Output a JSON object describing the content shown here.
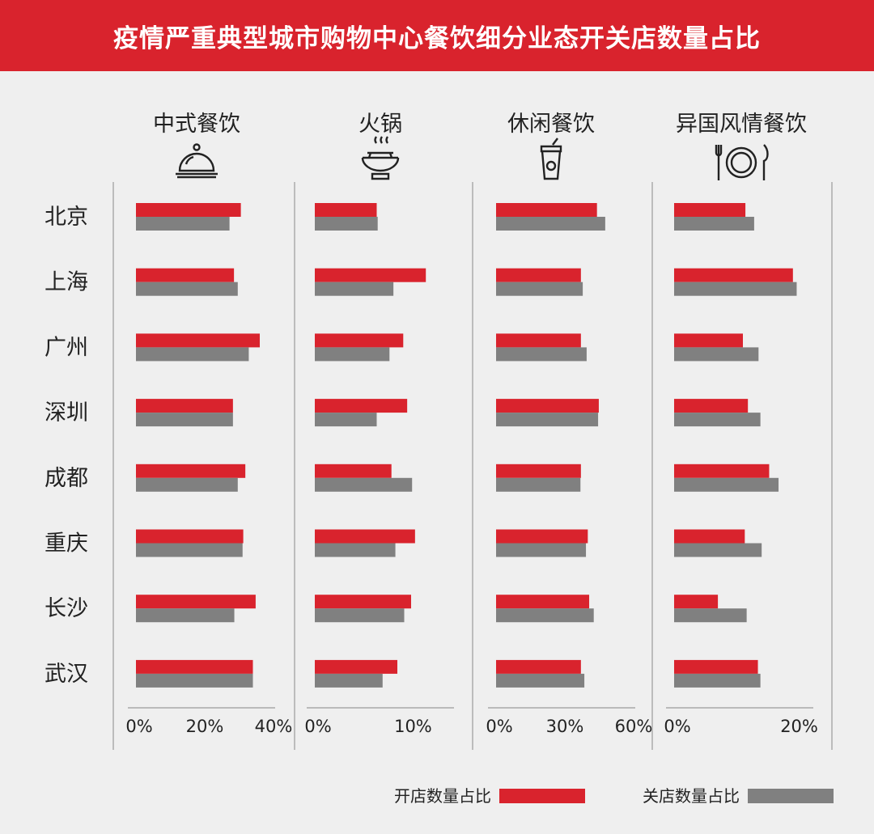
{
  "title": "疫情严重典型城市购物中心餐饮细分业态开关店数量占比",
  "colors": {
    "open": "#d9232d",
    "close": "#808080",
    "banner": "#d9232d",
    "axis": "#888888",
    "text": "#222222"
  },
  "legend": {
    "open_label": "开店数量占比",
    "close_label": "关店数量占比"
  },
  "chart_data": {
    "type": "bar",
    "orientation": "horizontal",
    "title": "疫情严重典型城市购物中心餐饮细分业态开关店数量占比",
    "categories": [
      "北京",
      "上海",
      "广州",
      "深圳",
      "成都",
      "重庆",
      "长沙",
      "武汉"
    ],
    "legend_position": "bottom-right",
    "grid": false,
    "panels": [
      {
        "name": "中式餐饮",
        "icon": "cloche-icon",
        "xlim": [
          0,
          40
        ],
        "ticks": [
          0,
          20,
          40
        ],
        "tick_labels": [
          "0%",
          "20%",
          "40%"
        ],
        "series": [
          {
            "name": "开店数量占比",
            "values": [
              30.5,
              28.5,
              36,
              28.2,
              31.8,
              31.2,
              34.8,
              34
            ]
          },
          {
            "name": "关店数量占比",
            "values": [
              27.2,
              29.6,
              32.8,
              28.2,
              29.6,
              31,
              28.6,
              34
            ]
          }
        ]
      },
      {
        "name": "火锅",
        "icon": "hotpot-icon",
        "xlim": [
          0,
          14
        ],
        "ticks": [
          0,
          10
        ],
        "tick_labels": [
          "0%",
          "10%"
        ],
        "series": [
          {
            "name": "开店数量占比",
            "values": [
              6.3,
              11.3,
              9,
              9.4,
              7.8,
              10.2,
              9.8,
              8.4
            ]
          },
          {
            "name": "关店数量占比",
            "values": [
              6.4,
              8,
              7.6,
              6.3,
              9.9,
              8.2,
              9.1,
              6.9
            ]
          }
        ]
      },
      {
        "name": "休闲餐饮",
        "icon": "drink-cup-icon",
        "xlim": [
          0,
          60
        ],
        "ticks": [
          0,
          30,
          60
        ],
        "tick_labels": [
          "0%",
          "30%",
          "60%"
        ],
        "series": [
          {
            "name": "开店数量占比",
            "values": [
              44,
              37,
              37,
              44.8,
              37,
              40,
              40.6,
              37
            ]
          },
          {
            "name": "关店数量占比",
            "values": [
              47.6,
              37.8,
              39.5,
              44.5,
              36.8,
              39.2,
              42.6,
              38.5
            ]
          }
        ]
      },
      {
        "name": "异国风情餐饮",
        "icon": "plate-cutlery-icon",
        "xlim": [
          0,
          22
        ],
        "ticks": [
          0,
          20
        ],
        "tick_labels": [
          "0%",
          "20%"
        ],
        "series": [
          {
            "name": "开店数量占比",
            "values": [
              11.4,
              19,
              11,
              11.8,
              15.2,
              11.3,
              7,
              13.4
            ]
          },
          {
            "name": "关店数量占比",
            "values": [
              12.8,
              19.6,
              13.5,
              13.8,
              16.7,
              14,
              11.6,
              13.8
            ]
          }
        ]
      }
    ]
  }
}
